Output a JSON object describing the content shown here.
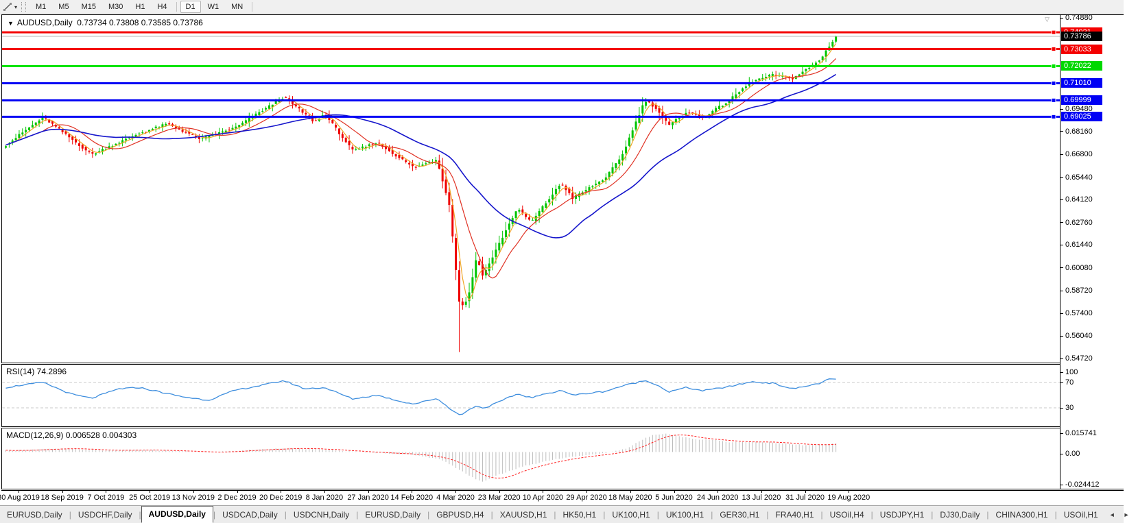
{
  "toolbar": {
    "tool_icon": "trendline-tool",
    "dropdown_caret": "▾",
    "timeframes": [
      {
        "label": "M1",
        "active": false
      },
      {
        "label": "M5",
        "active": false
      },
      {
        "label": "M15",
        "active": false
      },
      {
        "label": "M30",
        "active": false
      },
      {
        "label": "H1",
        "active": false
      },
      {
        "label": "H4",
        "active": false
      },
      {
        "label": "D1",
        "active": true
      },
      {
        "label": "W1",
        "active": false
      },
      {
        "label": "MN",
        "active": false
      }
    ]
  },
  "chart": {
    "collapse_icon": "▼",
    "symbol_title": "AUDUSD,Daily",
    "ohlc_text": "0.73734 0.73808 0.73585 0.73786"
  },
  "indicators": {
    "rsi_label": "RSI(14) 74.2896",
    "macd_label": "MACD(12,26,9) 0.006528 0.004303"
  },
  "chart_data": {
    "type": "candlestick",
    "symbol": "AUDUSD",
    "timeframe": "Daily",
    "ohlc_display": {
      "open": 0.73734,
      "high": 0.73808,
      "low": 0.73585,
      "close": 0.73786
    },
    "current_price": 0.73786,
    "x_labels": [
      "30 Aug 2019",
      "18 Sep 2019",
      "7 Oct 2019",
      "25 Oct 2019",
      "13 Nov 2019",
      "2 Dec 2019",
      "20 Dec 2019",
      "8 Jan 2020",
      "27 Jan 2020",
      "14 Feb 2020",
      "4 Mar 2020",
      "23 Mar 2020",
      "10 Apr 2020",
      "29 Apr 2020",
      "18 May 2020",
      "5 Jun 2020",
      "24 Jun 2020",
      "13 Jul 2020",
      "31 Jul 2020",
      "19 Aug 2020"
    ],
    "y_ticks": [
      0.7488,
      0.6948,
      0.6816,
      0.668,
      0.6544,
      0.6412,
      0.6276,
      0.6144,
      0.6008,
      0.5872,
      0.574,
      0.5604,
      0.5472
    ],
    "y_range": [
      0.54478,
      0.75042
    ],
    "horizontal_lines": [
      {
        "price": 0.74021,
        "color": "#f40000",
        "label_color": "#f40000"
      },
      {
        "price": 0.73033,
        "color": "#f40000",
        "label_color": "#f40000"
      },
      {
        "price": 0.72022,
        "color": "#00e400",
        "label_color": "#00d800"
      },
      {
        "price": 0.7101,
        "color": "#0000f4",
        "label_color": "#0000f4"
      },
      {
        "price": 0.69999,
        "color": "#0000f4",
        "label_color": "#0000f4"
      },
      {
        "price": 0.69025,
        "color": "#0000f4",
        "label_color": "#0000f4"
      }
    ],
    "candle_colors": {
      "up": "#00c400",
      "down": "#ef0000"
    },
    "moving_averages": [
      {
        "name": "fast",
        "color": "#f0a628",
        "period": 4
      },
      {
        "name": "medium",
        "color": "#e03224",
        "period": 12
      },
      {
        "name": "slow",
        "color": "#1616cc",
        "period": 34
      }
    ],
    "price_path": [
      [
        0.0,
        0.6735
      ],
      [
        0.045,
        0.69
      ],
      [
        0.103,
        0.668
      ],
      [
        0.161,
        0.6805
      ],
      [
        0.194,
        0.686
      ],
      [
        0.235,
        0.677
      ],
      [
        0.277,
        0.684
      ],
      [
        0.335,
        0.702
      ],
      [
        0.372,
        0.687
      ],
      [
        0.384,
        0.692
      ],
      [
        0.418,
        0.67
      ],
      [
        0.447,
        0.675
      ],
      [
        0.492,
        0.66
      ],
      [
        0.519,
        0.665
      ],
      [
        0.534,
        0.639
      ],
      [
        0.547,
        0.577
      ],
      [
        0.557,
        0.583
      ],
      [
        0.567,
        0.607
      ],
      [
        0.575,
        0.596
      ],
      [
        0.592,
        0.613
      ],
      [
        0.616,
        0.636
      ],
      [
        0.633,
        0.628
      ],
      [
        0.669,
        0.651
      ],
      [
        0.683,
        0.642
      ],
      [
        0.722,
        0.654
      ],
      [
        0.741,
        0.666
      ],
      [
        0.77,
        0.7
      ],
      [
        0.782,
        0.696
      ],
      [
        0.799,
        0.685
      ],
      [
        0.819,
        0.693
      ],
      [
        0.84,
        0.69
      ],
      [
        0.869,
        0.699
      ],
      [
        0.898,
        0.711
      ],
      [
        0.923,
        0.715
      ],
      [
        0.948,
        0.713
      ],
      [
        0.967,
        0.719
      ],
      [
        0.981,
        0.724
      ],
      [
        0.993,
        0.733
      ],
      [
        1.0,
        0.7379
      ]
    ],
    "extreme_low": {
      "t": 0.547,
      "low": 0.551
    },
    "rsi": {
      "label": "RSI(14)",
      "value": 74.2896,
      "range": [
        0,
        100
      ],
      "levels": [
        70,
        30
      ],
      "axis_labels": [
        "100",
        "70",
        "30"
      ],
      "path": [
        [
          0.0,
          62
        ],
        [
          0.02,
          66
        ],
        [
          0.045,
          70
        ],
        [
          0.078,
          52
        ],
        [
          0.103,
          45
        ],
        [
          0.136,
          60
        ],
        [
          0.161,
          62
        ],
        [
          0.186,
          55
        ],
        [
          0.21,
          48
        ],
        [
          0.244,
          42
        ],
        [
          0.277,
          58
        ],
        [
          0.31,
          66
        ],
        [
          0.335,
          73
        ],
        [
          0.36,
          60
        ],
        [
          0.384,
          62
        ],
        [
          0.418,
          44
        ],
        [
          0.447,
          50
        ],
        [
          0.476,
          40
        ],
        [
          0.492,
          36
        ],
        [
          0.519,
          45
        ],
        [
          0.534,
          30
        ],
        [
          0.547,
          18
        ],
        [
          0.567,
          34
        ],
        [
          0.575,
          29
        ],
        [
          0.592,
          38
        ],
        [
          0.616,
          52
        ],
        [
          0.633,
          46
        ],
        [
          0.669,
          58
        ],
        [
          0.683,
          50
        ],
        [
          0.722,
          56
        ],
        [
          0.741,
          64
        ],
        [
          0.77,
          73
        ],
        [
          0.782,
          68
        ],
        [
          0.799,
          55
        ],
        [
          0.819,
          62
        ],
        [
          0.84,
          57
        ],
        [
          0.869,
          63
        ],
        [
          0.898,
          71
        ],
        [
          0.923,
          69
        ],
        [
          0.948,
          60
        ],
        [
          0.967,
          65
        ],
        [
          0.981,
          69
        ],
        [
          0.993,
          76
        ],
        [
          1.0,
          74.29
        ]
      ]
    },
    "macd": {
      "label": "MACD(12,26,9)",
      "macd_value": 0.006528,
      "signal_value": 0.004303,
      "scale_max": 0.015741,
      "scale_min": -0.024412,
      "axis_labels": [
        "0.015741",
        "0.00",
        "-0.024412"
      ],
      "hist": [
        [
          0.0,
          0.001
        ],
        [
          0.045,
          0.0022
        ],
        [
          0.078,
          0.0026
        ],
        [
          0.111,
          0.0012
        ],
        [
          0.161,
          0.0016
        ],
        [
          0.21,
          0.0006
        ],
        [
          0.244,
          -0.0004
        ],
        [
          0.277,
          0.001
        ],
        [
          0.335,
          0.003
        ],
        [
          0.384,
          0.0018
        ],
        [
          0.418,
          0.0002
        ],
        [
          0.459,
          -0.001
        ],
        [
          0.492,
          -0.0022
        ],
        [
          0.525,
          -0.006
        ],
        [
          0.547,
          -0.014
        ],
        [
          0.567,
          -0.0215
        ],
        [
          0.575,
          -0.0235
        ],
        [
          0.592,
          -0.018
        ],
        [
          0.625,
          -0.011
        ],
        [
          0.658,
          -0.006
        ],
        [
          0.692,
          -0.003
        ],
        [
          0.716,
          -0.0015
        ],
        [
          0.732,
          0.0005
        ],
        [
          0.749,
          0.003
        ],
        [
          0.765,
          0.009
        ],
        [
          0.78,
          0.0135
        ],
        [
          0.795,
          0.0145
        ],
        [
          0.81,
          0.0125
        ],
        [
          0.83,
          0.01
        ],
        [
          0.855,
          0.0095
        ],
        [
          0.869,
          0.0078
        ],
        [
          0.898,
          0.008
        ],
        [
          0.923,
          0.0072
        ],
        [
          0.948,
          0.006
        ],
        [
          0.967,
          0.0052
        ],
        [
          0.981,
          0.0058
        ],
        [
          1.0,
          0.0065
        ]
      ]
    }
  },
  "tabs": {
    "items": [
      {
        "label": "EURUSD,Daily",
        "active": false
      },
      {
        "label": "USDCHF,Daily",
        "active": false
      },
      {
        "label": "AUDUSD,Daily",
        "active": true
      },
      {
        "label": "USDCAD,Daily",
        "active": false
      },
      {
        "label": "USDCNH,Daily",
        "active": false
      },
      {
        "label": "EURUSD,Daily",
        "active": false
      },
      {
        "label": "GBPUSD,H4",
        "active": false
      },
      {
        "label": "XAUUSD,H1",
        "active": false
      },
      {
        "label": "HK50,H1",
        "active": false
      },
      {
        "label": "UK100,H1",
        "active": false
      },
      {
        "label": "UK100,H1",
        "active": false
      },
      {
        "label": "GER30,H1",
        "active": false
      },
      {
        "label": "FRA40,H1",
        "active": false
      },
      {
        "label": "USOil,H4",
        "active": false
      },
      {
        "label": "USDJPY,H1",
        "active": false
      },
      {
        "label": "DJ30,Daily",
        "active": false
      },
      {
        "label": "CHINA300,H1",
        "active": false
      },
      {
        "label": "USOil,H1",
        "active": false
      }
    ],
    "scroll_left": "◄",
    "scroll_right": "►"
  }
}
